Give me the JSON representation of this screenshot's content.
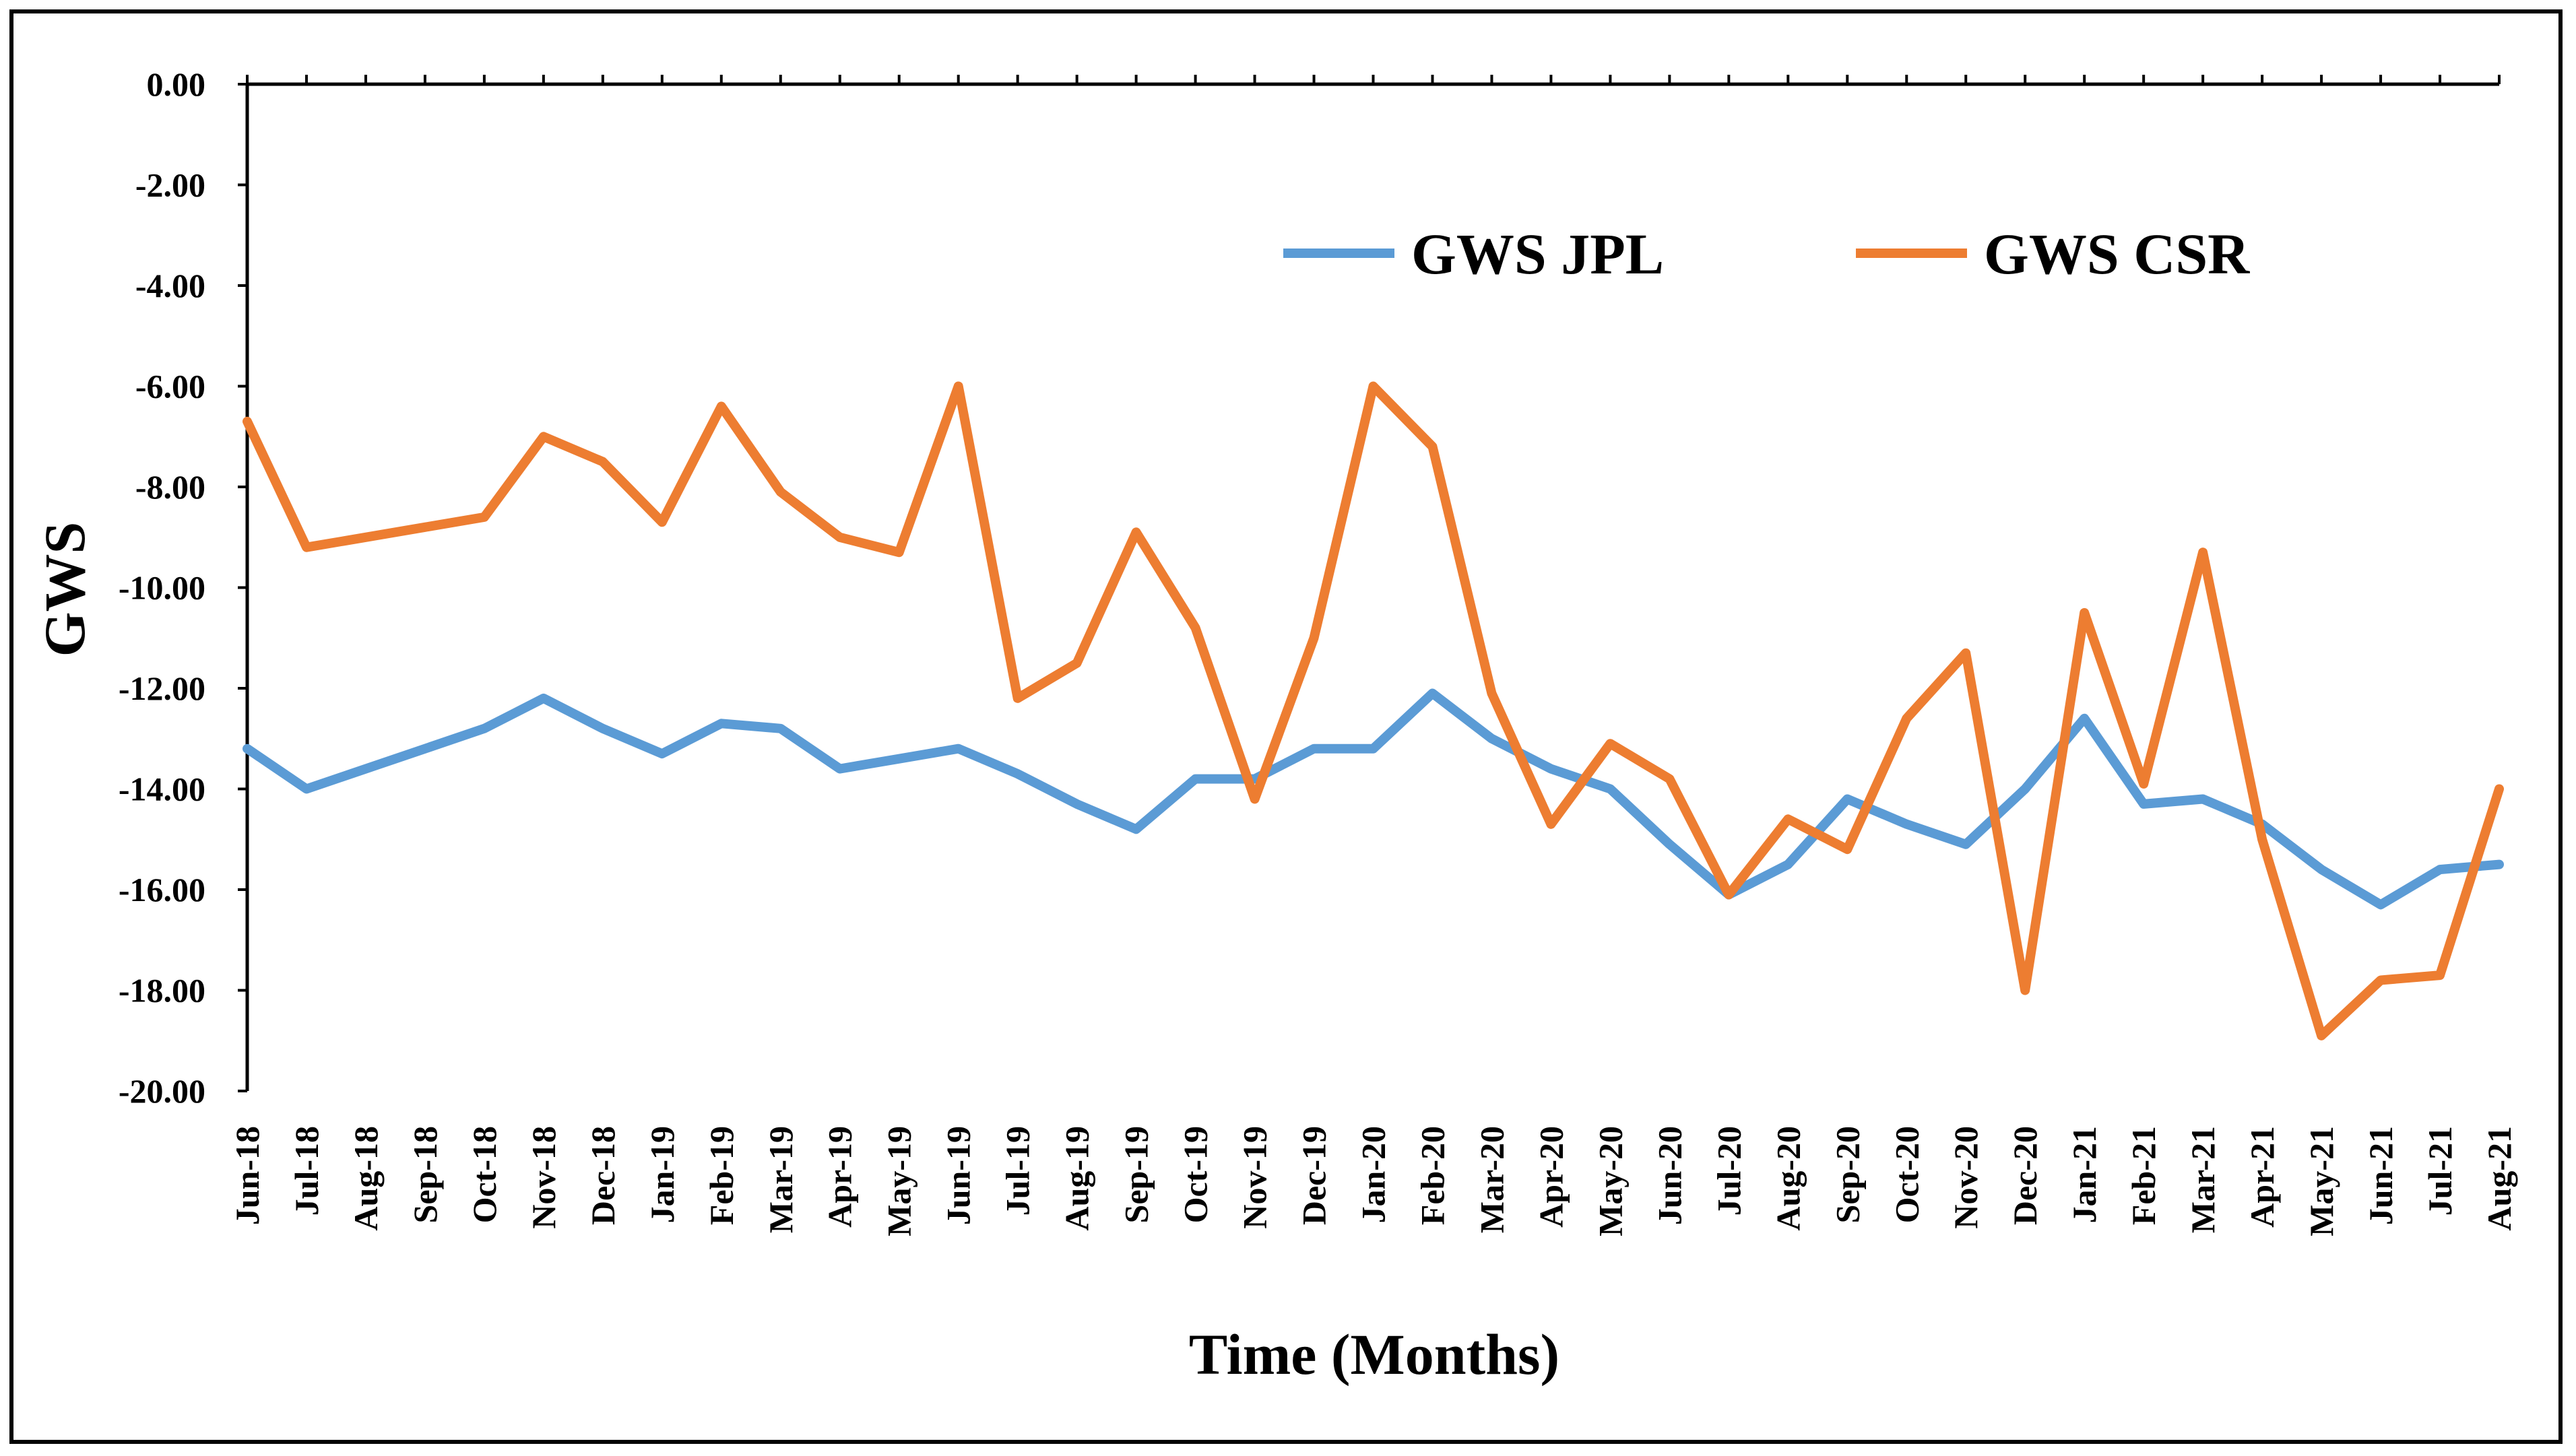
{
  "chart_data": {
    "type": "line",
    "title": "",
    "xlabel": "Time (Months)",
    "ylabel": "GWS",
    "ylim": [
      -20,
      0
    ],
    "yticks": [
      "0.00",
      "-2.00",
      "-4.00",
      "-6.00",
      "-8.00",
      "-10.00",
      "-12.00",
      "-14.00",
      "-16.00",
      "-18.00",
      "-20.00"
    ],
    "ytick_values": [
      0,
      -2,
      -4,
      -6,
      -8,
      -10,
      -12,
      -14,
      -16,
      -18,
      -20
    ],
    "categories": [
      "Jun-18",
      "Jul-18",
      "Aug-18",
      "Sep-18",
      "Oct-18",
      "Nov-18",
      "Dec-18",
      "Jan-19",
      "Feb-19",
      "Mar-19",
      "Apr-19",
      "May-19",
      "Jun-19",
      "Jul-19",
      "Aug-19",
      "Sep-19",
      "Oct-19",
      "Nov-19",
      "Dec-19",
      "Jan-20",
      "Feb-20",
      "Mar-20",
      "Apr-20",
      "May-20",
      "Jun-20",
      "Jul-20",
      "Aug-20",
      "Sep-20",
      "Oct-20",
      "Nov-20",
      "Dec-20",
      "Jan-21",
      "Feb-21",
      "Mar-21",
      "Apr-21",
      "May-21",
      "Jun-21",
      "Jul-21",
      "Aug-21"
    ],
    "legend_position": "top-right",
    "grid": false,
    "series": [
      {
        "name": "GWS JPL",
        "color": "#5B9BD5",
        "values": [
          -13.2,
          -14.0,
          -13.6,
          -13.2,
          -12.8,
          -12.2,
          -12.8,
          -13.3,
          -12.7,
          -12.8,
          -13.6,
          -13.4,
          -13.2,
          -13.7,
          -14.3,
          -14.8,
          -13.8,
          -13.8,
          -13.2,
          -13.2,
          -12.1,
          -13.0,
          -13.6,
          -14.0,
          -15.1,
          -16.1,
          -15.5,
          -14.2,
          -14.7,
          -15.1,
          -14.0,
          -12.6,
          -14.3,
          -14.2,
          -14.7,
          -15.6,
          -16.3,
          -15.6,
          -15.5
        ]
      },
      {
        "name": "GWS CSR",
        "color": "#ED7D31",
        "values": [
          -6.7,
          -9.2,
          -9.0,
          -8.8,
          -8.6,
          -7.0,
          -7.5,
          -8.7,
          -6.4,
          -8.1,
          -9.0,
          -9.3,
          -6.0,
          -12.2,
          -11.5,
          -8.9,
          -10.8,
          -14.2,
          -11.0,
          -6.0,
          -7.2,
          -12.1,
          -14.7,
          -13.1,
          -13.8,
          -16.1,
          -14.6,
          -15.2,
          -12.6,
          -11.3,
          -18.0,
          -10.5,
          -13.9,
          -9.3,
          -15.0,
          -18.9,
          -17.8,
          -17.7,
          -14.0
        ]
      }
    ]
  }
}
